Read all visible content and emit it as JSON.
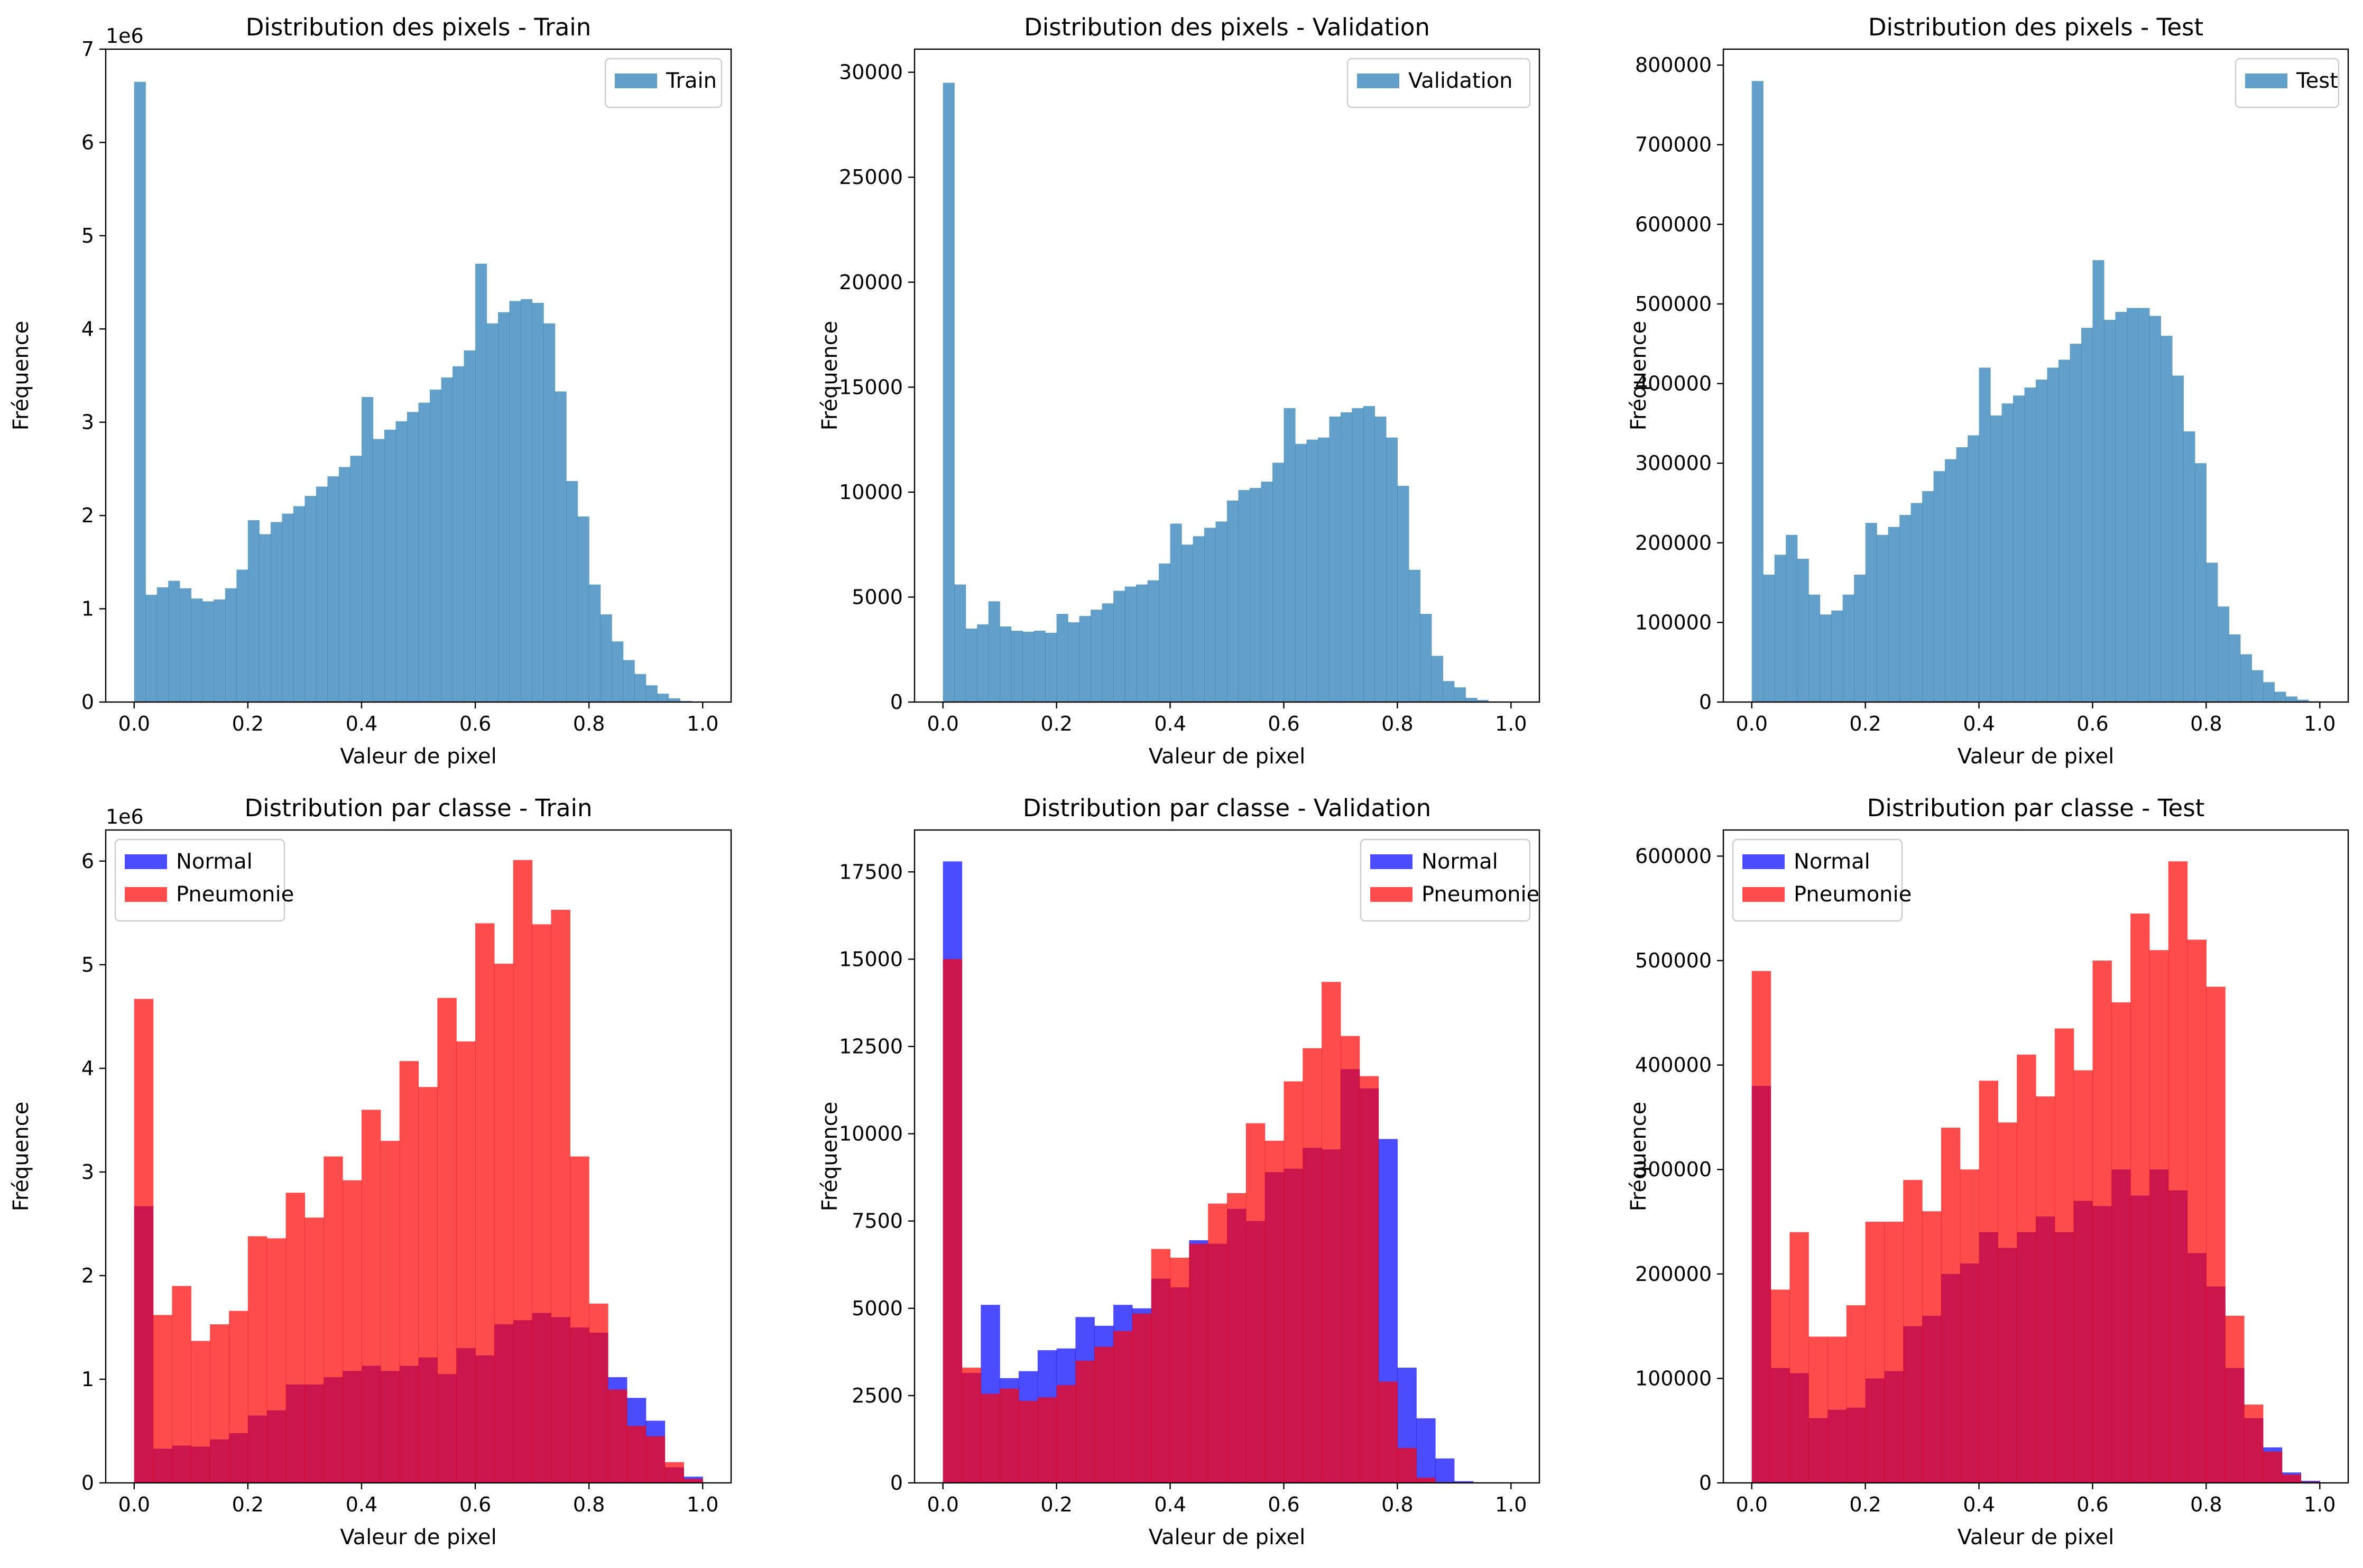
{
  "chart_data": [
    {
      "type": "bar",
      "title": "Distribution des pixels - Train",
      "xlabel": "Valeur de pixel",
      "ylabel": "Fréquence",
      "bin_start": 0.0,
      "bin_width": 0.02,
      "xlim": [
        -0.05,
        1.05
      ],
      "ylim": [
        0,
        7000000
      ],
      "xticks": [
        0.0,
        0.2,
        0.4,
        0.6,
        0.8,
        1.0
      ],
      "yticks": [
        0,
        1,
        2,
        3,
        4,
        5,
        6,
        7
      ],
      "ytick_labels": [
        "0",
        "1",
        "2",
        "3",
        "4",
        "5",
        "6",
        "7"
      ],
      "y_offset_label": "1e6",
      "legend_position": "top-right",
      "series": [
        {
          "name": "Train",
          "color": "#1f77b4",
          "alpha": 0.7,
          "values": [
            6650000,
            1150000,
            1230000,
            1300000,
            1220000,
            1110000,
            1080000,
            1100000,
            1220000,
            1420000,
            1950000,
            1800000,
            1930000,
            2020000,
            2100000,
            2210000,
            2310000,
            2420000,
            2520000,
            2640000,
            3270000,
            2820000,
            2920000,
            3010000,
            3110000,
            3210000,
            3350000,
            3480000,
            3600000,
            3770000,
            4700000,
            4060000,
            4180000,
            4300000,
            4320000,
            4280000,
            4060000,
            3330000,
            2370000,
            1990000,
            1260000,
            940000,
            650000,
            450000,
            300000,
            180000,
            90000,
            40000,
            12000,
            3000
          ]
        }
      ]
    },
    {
      "type": "bar",
      "title": "Distribution des pixels - Validation",
      "xlabel": "Valeur de pixel",
      "ylabel": "Fréquence",
      "bin_start": 0.0,
      "bin_width": 0.02,
      "xlim": [
        -0.05,
        1.05
      ],
      "ylim": [
        0,
        31100
      ],
      "xticks": [
        0.0,
        0.2,
        0.4,
        0.6,
        0.8,
        1.0
      ],
      "yticks": [
        0,
        5000,
        10000,
        15000,
        20000,
        25000,
        30000
      ],
      "ytick_labels": [
        "0",
        "5000",
        "10000",
        "15000",
        "20000",
        "25000",
        "30000"
      ],
      "y_offset_label": "",
      "legend_position": "top-right",
      "series": [
        {
          "name": "Validation",
          "color": "#1f77b4",
          "alpha": 0.7,
          "values": [
            29500,
            5600,
            3500,
            3700,
            4800,
            3600,
            3400,
            3350,
            3400,
            3300,
            4200,
            3800,
            4100,
            4400,
            4700,
            5300,
            5500,
            5600,
            5800,
            6600,
            8500,
            7500,
            7900,
            8300,
            8600,
            9600,
            10100,
            10200,
            10500,
            11400,
            14000,
            12300,
            12500,
            12600,
            13600,
            13800,
            14000,
            14100,
            13600,
            12600,
            10300,
            6300,
            4200,
            2200,
            1000,
            700,
            200,
            100,
            20,
            5
          ]
        }
      ]
    },
    {
      "type": "bar",
      "title": "Distribution des pixels - Test",
      "xlabel": "Valeur de pixel",
      "ylabel": "Fréquence",
      "bin_start": 0.0,
      "bin_width": 0.02,
      "xlim": [
        -0.05,
        1.05
      ],
      "ylim": [
        0,
        820000
      ],
      "xticks": [
        0.0,
        0.2,
        0.4,
        0.6,
        0.8,
        1.0
      ],
      "yticks": [
        0,
        100000,
        200000,
        300000,
        400000,
        500000,
        600000,
        700000,
        800000
      ],
      "ytick_labels": [
        "0",
        "100000",
        "200000",
        "300000",
        "400000",
        "500000",
        "600000",
        "700000",
        "800000"
      ],
      "y_offset_label": "",
      "legend_position": "top-right",
      "series": [
        {
          "name": "Test",
          "color": "#1f77b4",
          "alpha": 0.7,
          "values": [
            780000,
            160000,
            185000,
            210000,
            180000,
            135000,
            110000,
            115000,
            135000,
            160000,
            225000,
            210000,
            220000,
            235000,
            250000,
            265000,
            290000,
            305000,
            320000,
            335000,
            420000,
            360000,
            375000,
            385000,
            395000,
            405000,
            420000,
            430000,
            450000,
            470000,
            555000,
            480000,
            490000,
            495000,
            495000,
            485000,
            460000,
            410000,
            340000,
            300000,
            175000,
            120000,
            85000,
            60000,
            40000,
            25000,
            13000,
            7000,
            3000,
            1000
          ]
        }
      ]
    },
    {
      "type": "bar",
      "title": "Distribution par classe - Train",
      "xlabel": "Valeur de pixel",
      "ylabel": "Fréquence",
      "bin_start": 0.0,
      "bin_width": 0.0333333,
      "xlim": [
        -0.05,
        1.05
      ],
      "ylim": [
        0,
        6300000
      ],
      "xticks": [
        0.0,
        0.2,
        0.4,
        0.6,
        0.8,
        1.0
      ],
      "yticks": [
        0,
        1,
        2,
        3,
        4,
        5,
        6
      ],
      "ytick_labels": [
        "0",
        "1",
        "2",
        "3",
        "4",
        "5",
        "6"
      ],
      "y_offset_label": "1e6",
      "legend_position": "top-left",
      "series": [
        {
          "name": "Normal",
          "color": "#0000ff",
          "alpha": 0.7,
          "values": [
            2670000,
            330000,
            360000,
            350000,
            420000,
            480000,
            650000,
            700000,
            950000,
            950000,
            1020000,
            1080000,
            1130000,
            1080000,
            1130000,
            1210000,
            1050000,
            1300000,
            1230000,
            1530000,
            1570000,
            1640000,
            1600000,
            1500000,
            1450000,
            1020000,
            820000,
            600000,
            150000,
            60000
          ]
        },
        {
          "name": "Pneumonie",
          "color": "#ff0000",
          "alpha": 0.7,
          "values": [
            4670000,
            1620000,
            1900000,
            1370000,
            1530000,
            1660000,
            2380000,
            2360000,
            2800000,
            2560000,
            3150000,
            2920000,
            3600000,
            3300000,
            4070000,
            3820000,
            4680000,
            4260000,
            5400000,
            5010000,
            6010000,
            5390000,
            5530000,
            3150000,
            1730000,
            900000,
            550000,
            450000,
            200000,
            40000
          ]
        }
      ]
    },
    {
      "type": "bar",
      "title": "Distribution par classe - Validation",
      "xlabel": "Valeur de pixel",
      "ylabel": "Fréquence",
      "bin_start": 0.0,
      "bin_width": 0.0333333,
      "xlim": [
        -0.05,
        1.05
      ],
      "ylim": [
        0,
        18700
      ],
      "xticks": [
        0.0,
        0.2,
        0.4,
        0.6,
        0.8,
        1.0
      ],
      "yticks": [
        0,
        2500,
        5000,
        7500,
        10000,
        12500,
        15000,
        17500
      ],
      "ytick_labels": [
        "0",
        "2500",
        "5000",
        "7500",
        "10000",
        "12500",
        "15000",
        "17500"
      ],
      "y_offset_label": "",
      "legend_position": "top-right",
      "series": [
        {
          "name": "Normal",
          "color": "#0000ff",
          "alpha": 0.7,
          "values": [
            17800,
            3150,
            5100,
            3000,
            3200,
            3800,
            3850,
            4750,
            4500,
            5100,
            5000,
            5850,
            5600,
            6950,
            6850,
            7850,
            7500,
            8900,
            9000,
            9600,
            9550,
            11850,
            11300,
            9850,
            3300,
            1850,
            700,
            50,
            10,
            0
          ]
        },
        {
          "name": "Pneumonie",
          "color": "#ff0000",
          "alpha": 0.7,
          "values": [
            15000,
            3300,
            2550,
            2700,
            2350,
            2450,
            2800,
            3500,
            3900,
            4350,
            4850,
            6700,
            6450,
            6850,
            8000,
            8300,
            10300,
            9800,
            11500,
            12450,
            14350,
            12800,
            11650,
            2900,
            1000,
            150,
            20,
            0,
            0,
            0
          ]
        }
      ]
    },
    {
      "type": "bar",
      "title": "Distribution par classe - Test",
      "xlabel": "Valeur de pixel",
      "ylabel": "Fréquence",
      "bin_start": 0.0,
      "bin_width": 0.0333333,
      "xlim": [
        -0.05,
        1.05
      ],
      "ylim": [
        0,
        625000
      ],
      "xticks": [
        0.0,
        0.2,
        0.4,
        0.6,
        0.8,
        1.0
      ],
      "yticks": [
        0,
        100000,
        200000,
        300000,
        400000,
        500000,
        600000
      ],
      "ytick_labels": [
        "0",
        "100000",
        "200000",
        "300000",
        "400000",
        "500000",
        "600000"
      ],
      "y_offset_label": "",
      "legend_position": "top-left",
      "series": [
        {
          "name": "Normal",
          "color": "#0000ff",
          "alpha": 0.7,
          "values": [
            380000,
            110000,
            105000,
            62000,
            70000,
            72000,
            100000,
            107000,
            150000,
            160000,
            200000,
            210000,
            240000,
            225000,
            240000,
            255000,
            240000,
            270000,
            265000,
            300000,
            275000,
            300000,
            280000,
            220000,
            188000,
            110000,
            62000,
            34000,
            10000,
            2000
          ]
        },
        {
          "name": "Pneumonie",
          "color": "#ff0000",
          "alpha": 0.7,
          "values": [
            490000,
            185000,
            240000,
            140000,
            140000,
            170000,
            250000,
            250000,
            290000,
            260000,
            340000,
            300000,
            385000,
            345000,
            410000,
            370000,
            435000,
            395000,
            500000,
            460000,
            545000,
            510000,
            595000,
            520000,
            475000,
            160000,
            75000,
            30000,
            8000,
            1000
          ]
        }
      ]
    }
  ]
}
